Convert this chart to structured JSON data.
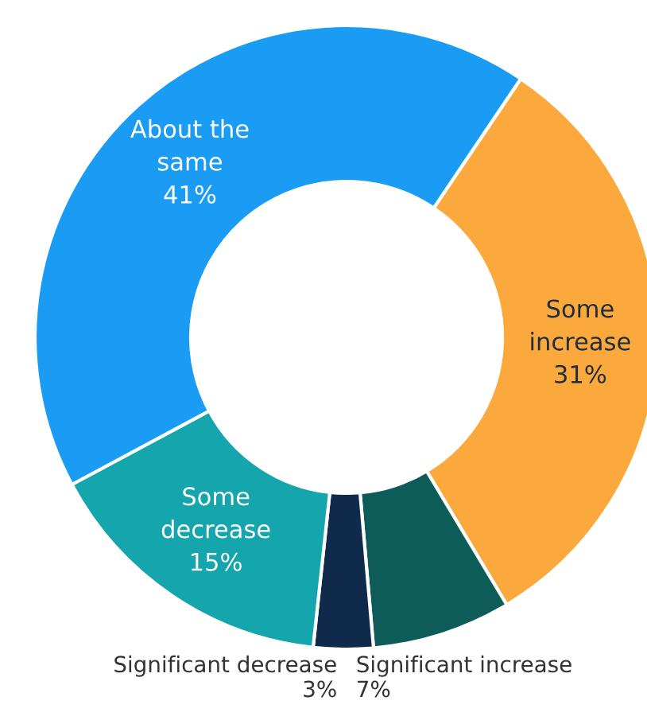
{
  "chart_data": {
    "type": "donut",
    "categories": [
      "Some increase",
      "Significant increase",
      "Significant decrease",
      "Some decrease",
      "About the same"
    ],
    "values": [
      31,
      7,
      3,
      15,
      41
    ],
    "value_labels": [
      "31%",
      "7%",
      "3%",
      "15%",
      "41%"
    ],
    "colors": [
      "#fba93d",
      "#0d5c5a",
      "#0f2a4a",
      "#15a6ad",
      "#1a9cf5"
    ]
  }
}
